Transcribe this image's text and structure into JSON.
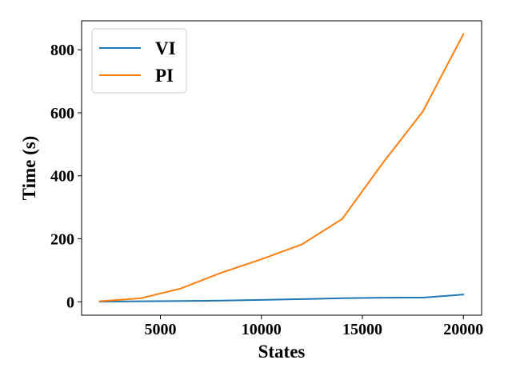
{
  "chart_data": {
    "type": "line",
    "title": "",
    "xlabel": "States",
    "ylabel": "Time (s)",
    "xlim": [
      1100,
      20900
    ],
    "ylim": [
      -42.5,
      892
    ],
    "xticks": [
      5000,
      10000,
      15000,
      20000
    ],
    "yticks": [
      0,
      200,
      400,
      600,
      800
    ],
    "grid": false,
    "legend_position": "top-left",
    "x": [
      2000,
      4000,
      6000,
      8000,
      10000,
      12000,
      14000,
      16000,
      18000,
      20000
    ],
    "series": [
      {
        "name": "VI",
        "color": "#1f77b4",
        "values": [
          0.5,
          1.5,
          2.5,
          4,
          6,
          8.5,
          11.5,
          13,
          13.5,
          23
        ]
      },
      {
        "name": "PI",
        "color": "#ff7f0e",
        "values": [
          2,
          11,
          42,
          92,
          135,
          182,
          263,
          440,
          605,
          850
        ]
      }
    ]
  }
}
